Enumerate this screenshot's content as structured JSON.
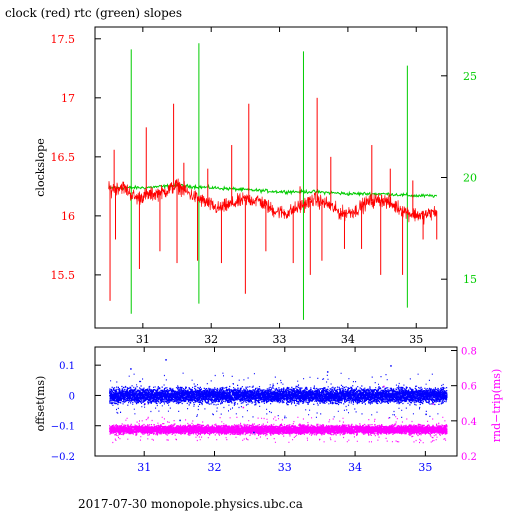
{
  "title": "clock (red) rtc (green) slopes",
  "footer": "2017-07-30  monopole.physics.ubc.ca",
  "colors": {
    "clock": "#ff0000",
    "rtc": "#00cc00",
    "offset": "#0000ff",
    "roundtrip": "#ff00ff",
    "axis": "#000000"
  },
  "chart_data": [
    {
      "type": "line",
      "title": "clock (red) rtc (green) slopes",
      "xlim": [
        30.3,
        35.45
      ],
      "x_ticks": [
        31,
        32,
        33,
        34,
        35
      ],
      "x_tick_labels": [
        "31",
        "32",
        "33",
        "34",
        "35"
      ],
      "ylabel": "clockslope",
      "ylim": [
        15.05,
        17.6
      ],
      "y_ticks": [
        15.5,
        16,
        16.5,
        17,
        17.5
      ],
      "y_tick_labels": [
        "15.5",
        "16",
        "16.5",
        "17",
        "17.5"
      ],
      "y2lim": [
        12.6,
        27.4
      ],
      "y2_ticks": [
        15,
        20,
        25
      ],
      "y2_tick_labels": [
        "15",
        "20",
        "25"
      ],
      "grid": false,
      "series": [
        {
          "name": "clock",
          "axis": "left",
          "color": "#ff0000",
          "trend": [
            [
              30.5,
              16.22
            ],
            [
              30.7,
              16.25
            ],
            [
              30.9,
              16.15
            ],
            [
              31.1,
              16.18
            ],
            [
              31.3,
              16.2
            ],
            [
              31.5,
              16.26
            ],
            [
              31.7,
              16.18
            ],
            [
              31.9,
              16.12
            ],
            [
              32.1,
              16.06
            ],
            [
              32.3,
              16.1
            ],
            [
              32.5,
              16.14
            ],
            [
              32.7,
              16.13
            ],
            [
              32.9,
              16.05
            ],
            [
              33.1,
              16.02
            ],
            [
              33.3,
              16.08
            ],
            [
              33.5,
              16.14
            ],
            [
              33.7,
              16.1
            ],
            [
              33.9,
              16.02
            ],
            [
              34.1,
              16.04
            ],
            [
              34.3,
              16.12
            ],
            [
              34.5,
              16.14
            ],
            [
              34.7,
              16.08
            ],
            [
              34.9,
              16.02
            ],
            [
              35.1,
              16.0
            ],
            [
              35.3,
              16.04
            ]
          ],
          "spikes": [
            [
              30.52,
              15.28
            ],
            [
              30.58,
              16.56
            ],
            [
              30.6,
              15.8
            ],
            [
              30.95,
              15.55
            ],
            [
              31.05,
              16.75
            ],
            [
              31.25,
              15.7
            ],
            [
              31.45,
              16.95
            ],
            [
              31.5,
              15.6
            ],
            [
              31.6,
              16.45
            ],
            [
              31.8,
              15.62
            ],
            [
              31.95,
              16.4
            ],
            [
              32.15,
              15.6
            ],
            [
              32.3,
              16.6
            ],
            [
              32.5,
              15.34
            ],
            [
              32.55,
              16.95
            ],
            [
              32.8,
              15.7
            ],
            [
              33.2,
              15.6
            ],
            [
              33.3,
              16.25
            ],
            [
              33.45,
              15.5
            ],
            [
              33.55,
              17.0
            ],
            [
              33.62,
              15.62
            ],
            [
              33.75,
              16.5
            ],
            [
              33.95,
              15.72
            ],
            [
              34.2,
              15.72
            ],
            [
              34.35,
              16.6
            ],
            [
              34.48,
              15.5
            ],
            [
              34.62,
              16.4
            ],
            [
              34.8,
              15.5
            ],
            [
              34.95,
              16.3
            ],
            [
              35.1,
              15.8
            ],
            [
              35.3,
              15.8
            ]
          ]
        },
        {
          "name": "rtc",
          "axis": "right",
          "color": "#00cc00",
          "trend": [
            [
              30.5,
              19.5
            ],
            [
              31.0,
              19.5
            ],
            [
              31.5,
              19.6
            ],
            [
              32.0,
              19.5
            ],
            [
              32.5,
              19.4
            ],
            [
              33.0,
              19.3
            ],
            [
              33.5,
              19.3
            ],
            [
              34.0,
              19.2
            ],
            [
              34.5,
              19.2
            ],
            [
              35.0,
              19.1
            ],
            [
              35.3,
              19.1
            ]
          ],
          "spikes": [
            [
              30.83,
              26.3,
              13.3
            ],
            [
              31.82,
              26.6,
              13.8
            ],
            [
              33.35,
              26.2,
              13.0
            ],
            [
              34.87,
              25.5,
              13.6
            ]
          ]
        }
      ]
    },
    {
      "type": "scatter",
      "xlim": [
        30.3,
        35.45
      ],
      "x_ticks": [
        31,
        32,
        33,
        34,
        35
      ],
      "x_tick_labels": [
        "31",
        "32",
        "33",
        "34",
        "35"
      ],
      "ylabel": "offset(ms)",
      "ylim": [
        -0.2,
        0.16
      ],
      "y_ticks": [
        -0.2,
        -0.1,
        0,
        0.1
      ],
      "y_tick_labels": [
        "−0.2",
        "−0.1",
        "0",
        "0.1"
      ],
      "y2label": "rnd−trip(ms)",
      "y2lim": [
        0.2,
        0.82
      ],
      "y2_ticks": [
        0.2,
        0.4,
        0.6,
        0.8
      ],
      "y2_tick_labels": [
        "0.2",
        "0.4",
        "0.6",
        "0.8"
      ],
      "grid": false,
      "series": [
        {
          "name": "offset",
          "axis": "left",
          "color": "#0000ff",
          "x_range": [
            30.5,
            35.3
          ],
          "center": 0.0,
          "spread": 0.025,
          "outliers": [
            [
              30.8,
              0.09
            ],
            [
              31.3,
              0.12
            ],
            [
              31.5,
              -0.08
            ],
            [
              32.55,
              -0.12
            ],
            [
              33.6,
              0.08
            ],
            [
              34.5,
              0.1
            ],
            [
              35.0,
              -0.06
            ]
          ]
        },
        {
          "name": "roundtrip",
          "axis": "right",
          "color": "#ff00ff",
          "x_range": [
            30.5,
            35.3
          ],
          "center": 0.35,
          "spread": 0.025,
          "outliers": [
            [
              31.0,
              0.5
            ],
            [
              31.6,
              0.55
            ],
            [
              32.4,
              0.48
            ],
            [
              33.55,
              0.52
            ],
            [
              34.4,
              0.6
            ],
            [
              35.1,
              0.5
            ]
          ]
        }
      ]
    }
  ]
}
